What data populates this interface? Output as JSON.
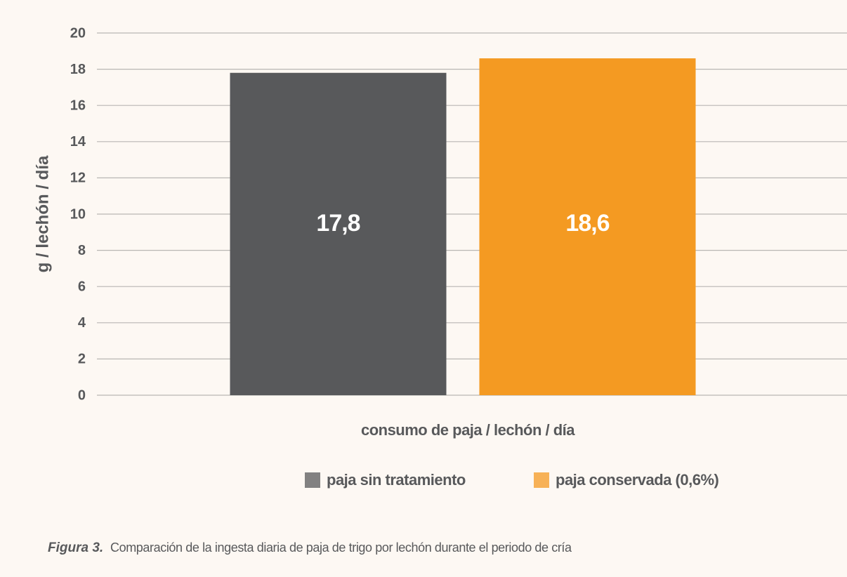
{
  "chart_data": {
    "type": "bar",
    "y_label": "g / lechón / día",
    "x_label": "consumo de paja / lechón / día",
    "categories": [
      null
    ],
    "series": [
      {
        "name": "paja sin tratamiento",
        "color": "#58595b",
        "values": [
          17.8
        ],
        "value_labels": [
          "17,8"
        ]
      },
      {
        "name": "paja conservada (0,6%)",
        "color": "#f49a22",
        "values": [
          18.6
        ],
        "value_labels": [
          "18,6"
        ]
      }
    ],
    "ylim": [
      0,
      20
    ],
    "yticks": [
      0,
      2,
      4,
      6,
      8,
      10,
      12,
      14,
      16,
      18,
      20
    ],
    "grid": true,
    "caption_label": "Figura 3.",
    "caption": "Comparación de la ingesta diaria de paja de trigo por lechón durante el periodo de cría"
  }
}
